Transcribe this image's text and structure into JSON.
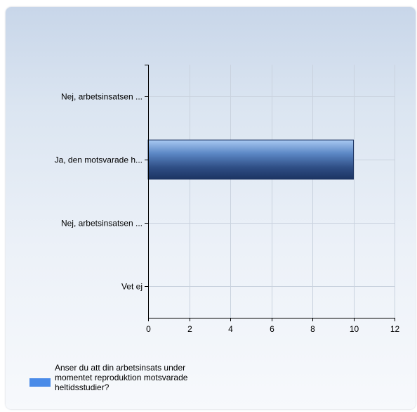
{
  "chart_data": {
    "type": "bar",
    "orientation": "horizontal",
    "categories": [
      "Nej, arbetsinsatsen ...",
      "Ja, den motsvarade h...",
      "Nej, arbetsinsatsen ...",
      "Vet ej"
    ],
    "series": [
      {
        "name": "Anser du att din arbetsinsats under momentet reproduktion motsvarade heltidsstudier?",
        "values": [
          0,
          10,
          0,
          0
        ],
        "color": "#4a8be8"
      }
    ],
    "xlim": [
      0,
      12
    ],
    "xticks": [
      0,
      2,
      4,
      6,
      8,
      10,
      12
    ],
    "xtick_labels": [
      "0",
      "2",
      "4",
      "6",
      "8",
      "10",
      "12"
    ],
    "grid": true,
    "legend_position": "bottom-left"
  },
  "legend": {
    "label": "Anser du att din arbetsinsats under momentet reproduktion motsvarade heltidsstudier?"
  }
}
